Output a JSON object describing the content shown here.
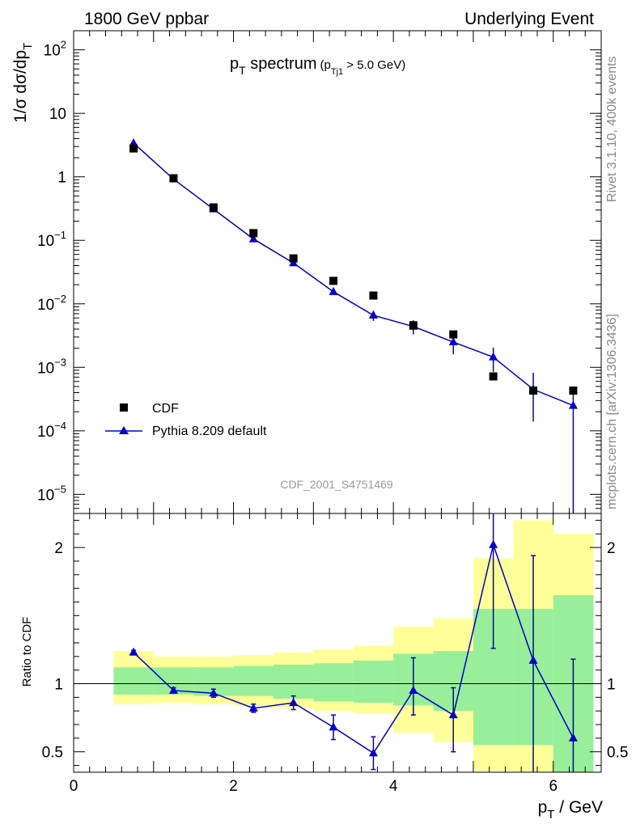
{
  "header": {
    "left": "1800 GeV ppbar",
    "right": "Underlying Event"
  },
  "side_text": {
    "top": "Rivet 3.1.10,  400k events",
    "bottom": "mcplots.cern.ch [arXiv:1306.3436]"
  },
  "chart_data": [
    {
      "type": "scatter",
      "panel": "main",
      "title": "p_T spectrum",
      "title_parts": {
        "main_p": "p",
        "main_sub": "T",
        "main_rest": " spectrum",
        "cut_open": "(p",
        "cut_sub": "Tj1",
        "cut_rest": " > 5.0 GeV)"
      },
      "ylabel": "1/σ dσ/dp_T",
      "ylabel_parts": {
        "main": "1/σ dσ/dp",
        "sub": "T"
      },
      "watermark": "CDF_2001_S4751469",
      "yscale": "log",
      "ylim": [
        5e-06,
        200
      ],
      "xlim": [
        0,
        6.6
      ],
      "grid": false,
      "legend_position": "bottom-left",
      "y_tick_labels": [
        {
          "value": 100,
          "base": "10",
          "exp": "2"
        },
        {
          "value": 10,
          "base": "10",
          "exp": ""
        },
        {
          "value": 1,
          "base": "1",
          "exp": ""
        },
        {
          "value": 0.1,
          "base": "10",
          "exp": "−1"
        },
        {
          "value": 0.01,
          "base": "10",
          "exp": "−2"
        },
        {
          "value": 0.001,
          "base": "10",
          "exp": "−3"
        },
        {
          "value": 0.0001,
          "base": "10",
          "exp": "−4"
        },
        {
          "value": 1e-05,
          "base": "10",
          "exp": "−5"
        }
      ],
      "series": [
        {
          "name": "CDF",
          "style": "marker",
          "color": "#000000",
          "x": [
            0.75,
            1.25,
            1.75,
            2.25,
            2.75,
            3.25,
            3.75,
            4.25,
            4.75,
            5.25,
            5.75,
            6.25
          ],
          "y": [
            2.8,
            0.95,
            0.33,
            0.13,
            0.052,
            0.023,
            0.0135,
            0.0046,
            0.0033,
            0.00072,
            0.00043,
            0.00043
          ]
        },
        {
          "name": "Pythia 8.209 default",
          "style": "line+triangle",
          "color": "#0000cc",
          "x": [
            0.75,
            1.25,
            1.75,
            2.25,
            2.75,
            3.25,
            3.75,
            4.25,
            4.75,
            5.25,
            5.75,
            6.25
          ],
          "y": [
            3.4,
            0.92,
            0.31,
            0.105,
            0.044,
            0.0155,
            0.0066,
            0.0044,
            0.0025,
            0.00145,
            0.00045,
            0.00025
          ],
          "err_low": [
            0.07,
            0.03,
            0.01,
            0.004,
            0.002,
            0.0008,
            0.0012,
            0.0011,
            0.0009,
            0.0006,
            0.00031,
            0.00025
          ],
          "err_high": [
            0.07,
            0.03,
            0.01,
            0.004,
            0.002,
            0.0008,
            0.0012,
            0.0011,
            0.0009,
            0.0006,
            0.00037,
            0.00025
          ]
        }
      ]
    },
    {
      "type": "scatter",
      "panel": "ratio",
      "ylabel": "Ratio to CDF",
      "xlabel": "p_T / GeV",
      "xlabel_parts": {
        "main": "p",
        "sub": "T",
        "rest": " / GeV"
      },
      "xlim": [
        0,
        6.6
      ],
      "ylim": [
        0.35,
        2.25
      ],
      "reference_line": 1,
      "x_ticks": [
        0,
        2,
        4,
        6
      ],
      "y_ticks": [
        0.5,
        1,
        2
      ],
      "uncertainty_bands": {
        "edges": [
          0.5,
          1.0,
          1.5,
          2.0,
          2.5,
          3.0,
          3.5,
          4.0,
          4.5,
          5.0,
          5.5,
          6.0,
          6.5
        ],
        "inner": {
          "color": "#99ee99",
          "low": [
            0.92,
            0.92,
            0.91,
            0.91,
            0.89,
            0.87,
            0.86,
            0.84,
            0.8,
            0.55,
            0.55,
            0.35
          ],
          "high": [
            1.12,
            1.12,
            1.12,
            1.13,
            1.14,
            1.15,
            1.17,
            1.22,
            1.24,
            1.55,
            1.55,
            1.65
          ]
        },
        "outer": {
          "color": "#ffff99",
          "low": [
            0.85,
            0.86,
            0.85,
            0.84,
            0.82,
            0.8,
            0.78,
            0.64,
            0.57,
            0.36,
            0.28,
            0.28
          ],
          "high": [
            1.24,
            1.2,
            1.2,
            1.21,
            1.23,
            1.25,
            1.28,
            1.42,
            1.48,
            1.92,
            2.2,
            2.1
          ]
        }
      },
      "series": [
        {
          "name": "Pythia 8.209 default",
          "color": "#0000cc",
          "x": [
            0.75,
            1.25,
            1.75,
            2.25,
            2.75,
            3.25,
            3.75,
            4.25,
            4.75,
            5.25,
            5.75,
            6.25
          ],
          "y": [
            1.23,
            0.95,
            0.93,
            0.82,
            0.86,
            0.68,
            0.49,
            0.95,
            0.77,
            2.02,
            1.17,
            0.6
          ],
          "err_low": [
            0.015,
            0.02,
            0.03,
            0.03,
            0.05,
            0.09,
            0.12,
            0.18,
            0.27,
            0.76,
            1.0,
            0.6
          ],
          "err_high": [
            0.015,
            0.02,
            0.03,
            0.03,
            0.05,
            0.09,
            0.12,
            0.24,
            0.2,
            0.8,
            0.77,
            0.58
          ]
        }
      ]
    }
  ]
}
